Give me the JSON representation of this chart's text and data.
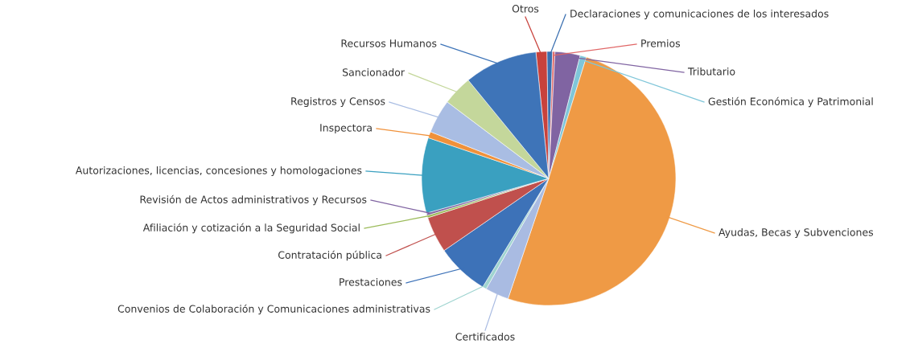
{
  "chart_data": {
    "type": "pie",
    "categories": [
      "Otros",
      "Declaraciones y comunicaciones de los interesados",
      "Premios",
      "Tributario",
      "Gestión Económica y Patrimonial",
      "Ayudas, Becas y Subvenciones",
      "Certificados",
      "Convenios de Colaboración y Comunicaciones administrativas",
      "Prestaciones",
      "Contratación pública",
      "Afiliación y cotización a la Seguridad Social",
      "Revisión de Actos administrativos y Recursos",
      "Autorizaciones, licencias, concesiones y homologaciones",
      "Inspectora",
      "Registros y Censos",
      "Sancionador",
      "Recursos Humanos"
    ],
    "values": [
      1.4,
      0.7,
      0.3,
      3.2,
      0.8,
      50.4,
      3.0,
      0.5,
      6.7,
      4.6,
      0.3,
      0.3,
      9.6,
      0.8,
      4.3,
      3.8,
      9.3
    ],
    "colors": [
      "#c8423c",
      "#3a6fb0",
      "#e06666",
      "#8064a2",
      "#7fc6d9",
      "#ef9a45",
      "#a9bbe2",
      "#9fd4d0",
      "#3d72b8",
      "#c0504d",
      "#9bbb59",
      "#8064a2",
      "#3aa0c0",
      "#f0913a",
      "#a9bde3",
      "#c4d79b",
      "#3e74b8"
    ]
  }
}
